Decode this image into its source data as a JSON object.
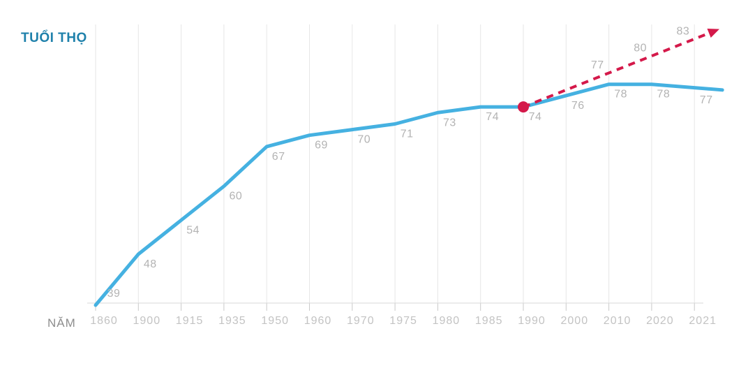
{
  "chart_data": {
    "type": "line",
    "title": "TUỔI THỌ",
    "xlabel": "NĂM",
    "categories": [
      "1860",
      "1900",
      "1915",
      "1935",
      "1950",
      "1960",
      "1970",
      "1975",
      "1980",
      "1985",
      "1990",
      "2000",
      "2010",
      "2020",
      "2021"
    ],
    "series": [
      {
        "id": "actual",
        "style": "solid",
        "color": "#45b1e1",
        "values": [
          39,
          48,
          54,
          60,
          67,
          69,
          70,
          71,
          73,
          74,
          74,
          76,
          78,
          78,
          77
        ]
      },
      {
        "id": "projection",
        "style": "dashed",
        "color": "#d4194a",
        "arrow": true,
        "x": [
          "1990",
          "2000",
          "2010",
          "2020"
        ],
        "values": [
          74,
          77,
          80,
          83
        ],
        "labeled_values": [
          77,
          80,
          83
        ]
      }
    ],
    "marker": {
      "x": "1990",
      "value": 74,
      "color": "#d4194a",
      "shape": "dot"
    },
    "ylim": [
      39,
      84
    ],
    "grid": "vertical-only",
    "legend": "none"
  },
  "colors": {
    "background": "#ffffff",
    "title": "#1f81ab",
    "actual_line": "#45b1e1",
    "projection": "#d4194a",
    "gridline": "#e6e6e6",
    "tick": "#c9c9c9",
    "axis_line": "#d9d9d9",
    "year_label": "#c3c3c3",
    "value_label": "#b3b3b3",
    "axis_title": "#8d8d8d"
  }
}
